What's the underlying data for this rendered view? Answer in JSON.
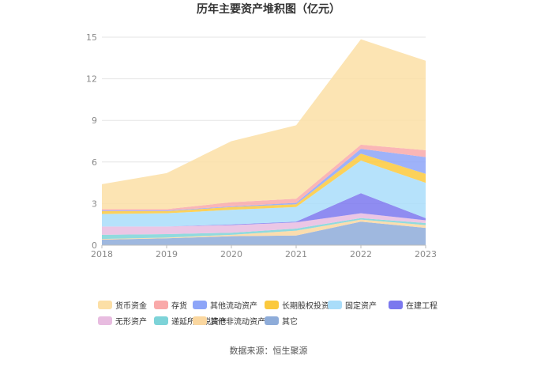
{
  "chart_data": {
    "type": "area",
    "stacked": true,
    "title": "历年主要资产堆积图（亿元）",
    "xlabel": "",
    "ylabel": "",
    "x": [
      "2018",
      "2019",
      "2020",
      "2021",
      "2022",
      "2023"
    ],
    "ylim": [
      0,
      15
    ],
    "yticks": [
      0,
      3,
      6,
      9,
      12,
      15
    ],
    "grid": true,
    "legend_position": "bottom",
    "series": [
      {
        "name": "其它",
        "color": "#8EACD9",
        "values": [
          0.4,
          0.5,
          0.65,
          0.7,
          1.7,
          1.25
        ]
      },
      {
        "name": "其他非流动资产",
        "color": "#FAD7A0",
        "values": [
          0.05,
          0.05,
          0.1,
          0.35,
          0.15,
          0.2
        ]
      },
      {
        "name": "递延所得税资产",
        "color": "#7DD3D8",
        "values": [
          0.3,
          0.25,
          0.15,
          0.15,
          0.1,
          0.15
        ]
      },
      {
        "name": "无形资产",
        "color": "#E8BCE0",
        "values": [
          0.6,
          0.55,
          0.55,
          0.45,
          0.35,
          0.2
        ]
      },
      {
        "name": "在建工程",
        "color": "#7B78EE",
        "values": [
          0.0,
          0.0,
          0.05,
          0.05,
          1.45,
          0.15
        ]
      },
      {
        "name": "固定资产",
        "color": "#A9DDFA",
        "values": [
          0.9,
          0.95,
          1.05,
          1.05,
          2.35,
          2.55
        ]
      },
      {
        "name": "长期股权投资",
        "color": "#FBC93D",
        "values": [
          0.2,
          0.15,
          0.2,
          0.2,
          0.5,
          0.65
        ]
      },
      {
        "name": "其他流动资产",
        "color": "#8DA5F8",
        "values": [
          0.05,
          0.05,
          0.05,
          0.1,
          0.35,
          1.2
        ]
      },
      {
        "name": "存货",
        "color": "#F9A9A9",
        "values": [
          0.1,
          0.1,
          0.3,
          0.3,
          0.3,
          0.5
        ]
      },
      {
        "name": "货币资金",
        "color": "#FCDFA6",
        "values": [
          1.8,
          2.6,
          4.4,
          5.3,
          7.6,
          6.45
        ]
      }
    ],
    "legend_order": [
      "货币资金",
      "存货",
      "其他流动资产",
      "长期股权投资",
      "固定资产",
      "在建工程",
      "无形资产",
      "递延所得税资产",
      "其他非流动资产",
      "其它"
    ]
  },
  "footer": {
    "source_text": "数据来源：恒生聚源"
  }
}
